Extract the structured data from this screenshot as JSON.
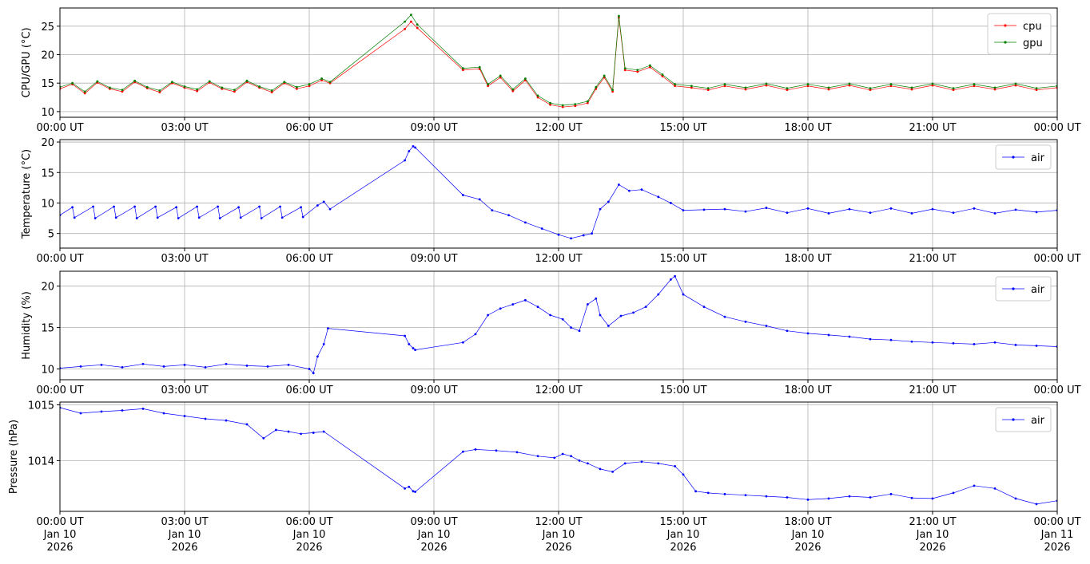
{
  "chart_data": [
    {
      "type": "line",
      "ylabel": "CPU/GPU (°C)",
      "ylim": [
        9,
        28.2
      ],
      "yticks": [
        "10",
        "15",
        "20",
        "25"
      ],
      "xlim": [
        0,
        24
      ],
      "xtick_labels": [
        "00:00 UT",
        "03:00 UT",
        "06:00 UT",
        "09:00 UT",
        "12:00 UT",
        "15:00 UT",
        "18:00 UT",
        "21:00 UT",
        "00:00 UT"
      ],
      "grid": true,
      "legend": "top-right",
      "series": [
        {
          "name": "cpu",
          "color": "#ff0000",
          "x": [
            0,
            0.3,
            0.6,
            0.9,
            1.2,
            1.5,
            1.8,
            2.1,
            2.4,
            2.7,
            3.0,
            3.3,
            3.6,
            3.9,
            4.2,
            4.5,
            4.8,
            5.1,
            5.4,
            5.7,
            6.0,
            6.3,
            6.5,
            8.3,
            8.45,
            8.6,
            9.7,
            10.1,
            10.3,
            10.6,
            10.9,
            11.2,
            11.5,
            11.8,
            12.1,
            12.4,
            12.7,
            12.9,
            13.1,
            13.3,
            13.45,
            13.6,
            13.9,
            14.2,
            14.5,
            14.8,
            15.2,
            15.6,
            16.0,
            16.5,
            17.0,
            17.5,
            18.0,
            18.5,
            19.0,
            19.5,
            20.0,
            20.5,
            21.0,
            21.5,
            22.0,
            22.5,
            23.0,
            23.5,
            24.0
          ],
          "values": [
            14.0,
            14.8,
            13.2,
            15.1,
            14.0,
            13.5,
            15.2,
            14.1,
            13.4,
            15.0,
            14.2,
            13.6,
            15.1,
            14.0,
            13.5,
            15.2,
            14.2,
            13.4,
            15.0,
            14.0,
            14.5,
            15.5,
            15.0,
            24.5,
            25.8,
            24.7,
            17.3,
            17.5,
            14.5,
            16.0,
            13.6,
            15.5,
            12.5,
            11.2,
            10.8,
            11.0,
            11.5,
            14.0,
            16.0,
            13.5,
            26.5,
            17.3,
            17.0,
            17.8,
            16.2,
            14.5,
            14.2,
            13.8,
            14.5,
            13.9,
            14.6,
            13.8,
            14.5,
            13.9,
            14.6,
            13.8,
            14.5,
            13.9,
            14.6,
            13.8,
            14.5,
            13.9,
            14.6,
            13.8,
            14.2
          ]
        },
        {
          "name": "gpu",
          "color": "#008000",
          "x": [
            0,
            0.3,
            0.6,
            0.9,
            1.2,
            1.5,
            1.8,
            2.1,
            2.4,
            2.7,
            3.0,
            3.3,
            3.6,
            3.9,
            4.2,
            4.5,
            4.8,
            5.1,
            5.4,
            5.7,
            6.0,
            6.3,
            6.5,
            8.3,
            8.45,
            8.6,
            9.7,
            10.1,
            10.3,
            10.6,
            10.9,
            11.2,
            11.5,
            11.8,
            12.1,
            12.4,
            12.7,
            12.9,
            13.1,
            13.3,
            13.45,
            13.6,
            13.9,
            14.2,
            14.5,
            14.8,
            15.2,
            15.6,
            16.0,
            16.5,
            17.0,
            17.5,
            18.0,
            18.5,
            19.0,
            19.5,
            20.0,
            20.5,
            21.0,
            21.5,
            22.0,
            22.5,
            23.0,
            23.5,
            24.0
          ],
          "values": [
            14.3,
            15.0,
            13.5,
            15.3,
            14.2,
            13.8,
            15.4,
            14.3,
            13.7,
            15.2,
            14.4,
            13.9,
            15.3,
            14.2,
            13.8,
            15.4,
            14.4,
            13.7,
            15.2,
            14.3,
            14.8,
            15.8,
            15.2,
            25.8,
            27.0,
            25.3,
            17.6,
            17.8,
            14.8,
            16.3,
            13.9,
            15.8,
            12.8,
            11.5,
            11.1,
            11.3,
            11.8,
            14.3,
            16.3,
            13.8,
            26.8,
            17.6,
            17.3,
            18.1,
            16.5,
            14.8,
            14.5,
            14.1,
            14.8,
            14.2,
            14.9,
            14.1,
            14.8,
            14.2,
            14.9,
            14.1,
            14.8,
            14.2,
            14.9,
            14.1,
            14.8,
            14.2,
            14.9,
            14.1,
            14.5
          ]
        }
      ]
    },
    {
      "type": "line",
      "ylabel": "Temperature (°C)",
      "ylim": [
        2.6,
        20.4
      ],
      "yticks": [
        "5",
        "10",
        "15",
        "20"
      ],
      "xlim": [
        0,
        24
      ],
      "xtick_labels": [
        "00:00 UT",
        "03:00 UT",
        "06:00 UT",
        "09:00 UT",
        "12:00 UT",
        "15:00 UT",
        "18:00 UT",
        "21:00 UT",
        "00:00 UT"
      ],
      "grid": true,
      "legend": "top-right",
      "series": [
        {
          "name": "air",
          "color": "#0000ff",
          "x": [
            0,
            0.3,
            0.35,
            0.8,
            0.85,
            1.3,
            1.35,
            1.8,
            1.85,
            2.3,
            2.35,
            2.8,
            2.85,
            3.3,
            3.35,
            3.8,
            3.85,
            4.3,
            4.35,
            4.8,
            4.85,
            5.3,
            5.35,
            5.8,
            5.85,
            6.2,
            6.35,
            6.5,
            8.3,
            8.4,
            8.5,
            8.55,
            9.7,
            10.1,
            10.4,
            10.8,
            11.2,
            11.6,
            12.0,
            12.3,
            12.6,
            12.8,
            13.0,
            13.2,
            13.45,
            13.7,
            14.0,
            14.4,
            14.7,
            15.0,
            15.5,
            16.0,
            16.5,
            17.0,
            17.5,
            18.0,
            18.5,
            19.0,
            19.5,
            20.0,
            20.5,
            21.0,
            21.5,
            22.0,
            22.5,
            23.0,
            23.5,
            24.0
          ],
          "values": [
            8.0,
            9.3,
            7.6,
            9.4,
            7.5,
            9.4,
            7.6,
            9.4,
            7.5,
            9.4,
            7.6,
            9.3,
            7.5,
            9.4,
            7.6,
            9.4,
            7.5,
            9.3,
            7.6,
            9.4,
            7.5,
            9.4,
            7.6,
            9.3,
            7.7,
            9.6,
            10.2,
            9.0,
            17.0,
            18.5,
            19.3,
            19.1,
            11.3,
            10.6,
            8.8,
            8.0,
            6.8,
            5.8,
            4.8,
            4.2,
            4.7,
            5.0,
            9.0,
            10.2,
            13.0,
            12.0,
            12.2,
            11.0,
            10.0,
            8.8,
            8.9,
            9.0,
            8.6,
            9.2,
            8.4,
            9.1,
            8.3,
            9.0,
            8.4,
            9.1,
            8.3,
            9.0,
            8.4,
            9.1,
            8.3,
            8.9,
            8.5,
            8.8
          ]
        }
      ]
    },
    {
      "type": "line",
      "ylabel": "Humidity (%)",
      "ylim": [
        8.7,
        21.8
      ],
      "yticks": [
        "10",
        "15",
        "20"
      ],
      "xlim": [
        0,
        24
      ],
      "xtick_labels": [
        "00:00 UT",
        "03:00 UT",
        "06:00 UT",
        "09:00 UT",
        "12:00 UT",
        "15:00 UT",
        "18:00 UT",
        "21:00 UT",
        "00:00 UT"
      ],
      "grid": true,
      "legend": "top-right",
      "series": [
        {
          "name": "air",
          "color": "#0000ff",
          "x": [
            0,
            0.5,
            1.0,
            1.5,
            2.0,
            2.5,
            3.0,
            3.5,
            4.0,
            4.5,
            5.0,
            5.5,
            6.0,
            6.1,
            6.2,
            6.35,
            6.45,
            8.3,
            8.4,
            8.5,
            8.55,
            9.7,
            10.0,
            10.3,
            10.6,
            10.9,
            11.2,
            11.5,
            11.8,
            12.1,
            12.3,
            12.5,
            12.7,
            12.9,
            13.0,
            13.2,
            13.5,
            13.8,
            14.1,
            14.4,
            14.7,
            14.8,
            15.0,
            15.5,
            16.0,
            16.5,
            17.0,
            17.5,
            18.0,
            18.5,
            19.0,
            19.5,
            20.0,
            20.5,
            21.0,
            21.5,
            22.0,
            22.5,
            23.0,
            23.5,
            24.0
          ],
          "values": [
            10.1,
            10.3,
            10.5,
            10.2,
            10.6,
            10.3,
            10.5,
            10.2,
            10.6,
            10.4,
            10.3,
            10.5,
            10.0,
            9.5,
            11.5,
            13.0,
            14.9,
            14.0,
            13.0,
            12.5,
            12.3,
            13.2,
            14.2,
            16.5,
            17.3,
            17.8,
            18.3,
            17.5,
            16.5,
            16.0,
            15.0,
            14.6,
            17.8,
            18.5,
            16.5,
            15.2,
            16.4,
            16.8,
            17.5,
            19.0,
            20.8,
            21.2,
            19.0,
            17.5,
            16.3,
            15.7,
            15.2,
            14.6,
            14.3,
            14.1,
            13.9,
            13.6,
            13.5,
            13.3,
            13.2,
            13.1,
            13.0,
            13.2,
            12.9,
            12.8,
            12.7
          ]
        }
      ]
    },
    {
      "type": "line",
      "ylabel": "Pressure (hPa)",
      "ylim": [
        1013.09,
        1015.05
      ],
      "yticks": [
        "1014",
        "1015"
      ],
      "xlim": [
        0,
        24
      ],
      "xtick_labels": [
        "00:00 UT\nJan 10\n2026",
        "03:00 UT\nJan 10\n2026",
        "06:00 UT\nJan 10\n2026",
        "09:00 UT\nJan 10\n2026",
        "12:00 UT\nJan 10\n2026",
        "15:00 UT\nJan 10\n2026",
        "18:00 UT\nJan 10\n2026",
        "21:00 UT\nJan 10\n2026",
        "00:00 UT\nJan 11\n2026"
      ],
      "grid": true,
      "legend": "top-right",
      "series": [
        {
          "name": "air",
          "color": "#0000ff",
          "x": [
            0,
            0.5,
            1.0,
            1.5,
            2.0,
            2.5,
            3.0,
            3.5,
            4.0,
            4.5,
            4.9,
            5.2,
            5.5,
            5.8,
            6.1,
            6.35,
            8.3,
            8.4,
            8.5,
            8.55,
            9.7,
            10.0,
            10.5,
            11.0,
            11.5,
            11.9,
            12.1,
            12.3,
            12.5,
            12.7,
            13.0,
            13.3,
            13.6,
            14.0,
            14.4,
            14.8,
            15.0,
            15.3,
            15.6,
            16.0,
            16.5,
            17.0,
            17.5,
            18.0,
            18.5,
            19.0,
            19.5,
            20.0,
            20.5,
            21.0,
            21.5,
            22.0,
            22.5,
            23.0,
            23.5,
            24.0
          ],
          "values": [
            1014.95,
            1014.85,
            1014.88,
            1014.9,
            1014.93,
            1014.85,
            1014.8,
            1014.75,
            1014.72,
            1014.65,
            1014.4,
            1014.55,
            1014.52,
            1014.48,
            1014.5,
            1014.52,
            1013.5,
            1013.53,
            1013.45,
            1013.44,
            1014.16,
            1014.2,
            1014.18,
            1014.15,
            1014.08,
            1014.05,
            1014.12,
            1014.08,
            1014.0,
            1013.95,
            1013.85,
            1013.8,
            1013.95,
            1013.98,
            1013.95,
            1013.9,
            1013.75,
            1013.45,
            1013.42,
            1013.4,
            1013.38,
            1013.36,
            1013.34,
            1013.3,
            1013.32,
            1013.36,
            1013.34,
            1013.4,
            1013.33,
            1013.32,
            1013.42,
            1013.55,
            1013.5,
            1013.32,
            1013.22,
            1013.28
          ]
        }
      ]
    }
  ]
}
